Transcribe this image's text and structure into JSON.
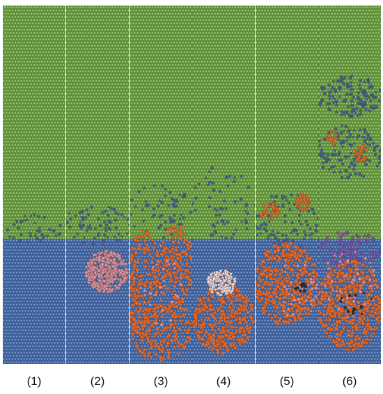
{
  "figure": {
    "panels": [
      {
        "label": "(1)"
      },
      {
        "label": "(2)"
      },
      {
        "label": "(3)"
      },
      {
        "label": "(4)"
      },
      {
        "label": "(5)"
      },
      {
        "label": "(6)"
      }
    ],
    "colors": {
      "upper_layer": "#5f8f3a",
      "upper_layer_dot": "#b9dd8f",
      "lower_layer": "#3f5f99",
      "lower_layer_dot": "#8db0df",
      "projectile": "#d9929e",
      "projectile_light": "#ecd9dc",
      "debris": "#e56a2a",
      "mixed": "#7f4fb0",
      "dark": "#2b2b2b"
    }
  }
}
